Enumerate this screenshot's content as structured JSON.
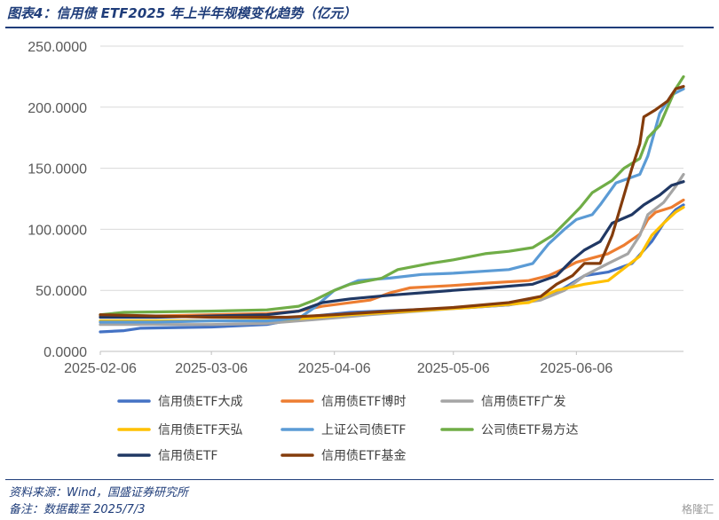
{
  "header": {
    "title": "图表4：信用债 ETF2025 年上半年规模变化趋势（亿元）"
  },
  "footer": {
    "source": "资料来源：Wind，国盛证券研究所",
    "note": "备注：数据截至 2025/7/3",
    "watermark": "格隆汇"
  },
  "chart_data": {
    "type": "line",
    "title": "信用债 ETF2025 年上半年规模变化趋势（亿元）",
    "xlabel": "",
    "ylabel": "",
    "ylim": [
      0,
      250
    ],
    "xlim": [
      "2025-02-06",
      "2025-07-03"
    ],
    "y_ticks": [
      "0.0000",
      "50.0000",
      "100.0000",
      "150.0000",
      "200.0000",
      "250.0000"
    ],
    "x_ticks": [
      "2025-02-06",
      "2025-03-06",
      "2025-04-06",
      "2025-05-06",
      "2025-06-06"
    ],
    "grid": true,
    "legend_position": "bottom",
    "series": [
      {
        "name": "信用债ETF大成",
        "color": "#4472c4",
        "points": [
          [
            "2025-02-06",
            16
          ],
          [
            "2025-02-12",
            17
          ],
          [
            "2025-02-16",
            19
          ],
          [
            "2025-03-06",
            20
          ],
          [
            "2025-03-20",
            22
          ],
          [
            "2025-03-25",
            25
          ],
          [
            "2025-04-01",
            29
          ],
          [
            "2025-04-10",
            32
          ],
          [
            "2025-04-25",
            34
          ],
          [
            "2025-05-10",
            36
          ],
          [
            "2025-05-20",
            38
          ],
          [
            "2025-05-30",
            45
          ],
          [
            "2025-06-03",
            52
          ],
          [
            "2025-06-08",
            62
          ],
          [
            "2025-06-14",
            65
          ],
          [
            "2025-06-20",
            72
          ],
          [
            "2025-06-25",
            90
          ],
          [
            "2025-06-28",
            105
          ],
          [
            "2025-07-01",
            116
          ],
          [
            "2025-07-03",
            120
          ]
        ]
      },
      {
        "name": "信用债ETF博时",
        "color": "#ed7d31",
        "points": [
          [
            "2025-02-06",
            29
          ],
          [
            "2025-02-20",
            29
          ],
          [
            "2025-03-06",
            30
          ],
          [
            "2025-03-20",
            31
          ],
          [
            "2025-03-28",
            33
          ],
          [
            "2025-04-03",
            37
          ],
          [
            "2025-04-15",
            42
          ],
          [
            "2025-04-20",
            48
          ],
          [
            "2025-04-25",
            52
          ],
          [
            "2025-05-06",
            54
          ],
          [
            "2025-05-15",
            56
          ],
          [
            "2025-05-25",
            58
          ],
          [
            "2025-05-30",
            62
          ],
          [
            "2025-06-03",
            68
          ],
          [
            "2025-06-06",
            73
          ],
          [
            "2025-06-14",
            80
          ],
          [
            "2025-06-18",
            87
          ],
          [
            "2025-06-22",
            96
          ],
          [
            "2025-06-24",
            108
          ],
          [
            "2025-06-26",
            114
          ],
          [
            "2025-06-30",
            118
          ],
          [
            "2025-07-03",
            124
          ]
        ]
      },
      {
        "name": "信用债ETF广发",
        "color": "#a5a5a5",
        "points": [
          [
            "2025-02-06",
            22
          ],
          [
            "2025-02-20",
            22
          ],
          [
            "2025-03-06",
            22
          ],
          [
            "2025-03-20",
            23
          ],
          [
            "2025-04-01",
            26
          ],
          [
            "2025-04-15",
            30
          ],
          [
            "2025-05-06",
            35
          ],
          [
            "2025-05-20",
            38
          ],
          [
            "2025-05-28",
            42
          ],
          [
            "2025-06-03",
            50
          ],
          [
            "2025-06-08",
            62
          ],
          [
            "2025-06-14",
            72
          ],
          [
            "2025-06-19",
            80
          ],
          [
            "2025-06-22",
            95
          ],
          [
            "2025-06-24",
            112
          ],
          [
            "2025-06-28",
            122
          ],
          [
            "2025-07-01",
            135
          ],
          [
            "2025-07-03",
            145
          ]
        ]
      },
      {
        "name": "信用债ETF天弘",
        "color": "#ffc000",
        "points": [
          [
            "2025-02-06",
            25
          ],
          [
            "2025-02-20",
            25
          ],
          [
            "2025-03-06",
            25
          ],
          [
            "2025-03-25",
            26
          ],
          [
            "2025-04-10",
            30
          ],
          [
            "2025-04-25",
            33
          ],
          [
            "2025-05-10",
            36
          ],
          [
            "2025-05-25",
            40
          ],
          [
            "2025-06-01",
            50
          ],
          [
            "2025-06-08",
            55
          ],
          [
            "2025-06-14",
            58
          ],
          [
            "2025-06-18",
            68
          ],
          [
            "2025-06-22",
            78
          ],
          [
            "2025-06-25",
            95
          ],
          [
            "2025-06-28",
            105
          ],
          [
            "2025-07-01",
            114
          ],
          [
            "2025-07-03",
            118
          ]
        ]
      },
      {
        "name": "上证公司债ETF",
        "color": "#5b9bd5",
        "points": [
          [
            "2025-02-06",
            24
          ],
          [
            "2025-02-20",
            24
          ],
          [
            "2025-03-06",
            25
          ],
          [
            "2025-03-20",
            25
          ],
          [
            "2025-03-28",
            27
          ],
          [
            "2025-04-01",
            36
          ],
          [
            "2025-04-06",
            50
          ],
          [
            "2025-04-12",
            58
          ],
          [
            "2025-04-20",
            60
          ],
          [
            "2025-04-28",
            63
          ],
          [
            "2025-05-06",
            64
          ],
          [
            "2025-05-20",
            67
          ],
          [
            "2025-05-26",
            72
          ],
          [
            "2025-05-30",
            88
          ],
          [
            "2025-06-03",
            100
          ],
          [
            "2025-06-06",
            108
          ],
          [
            "2025-06-10",
            112
          ],
          [
            "2025-06-12",
            120
          ],
          [
            "2025-06-16",
            138
          ],
          [
            "2025-06-22",
            145
          ],
          [
            "2025-06-24",
            160
          ],
          [
            "2025-06-27",
            195
          ],
          [
            "2025-06-30",
            210
          ],
          [
            "2025-07-03",
            215
          ]
        ]
      },
      {
        "name": "公司债ETF易方达",
        "color": "#70ad47",
        "points": [
          [
            "2025-02-06",
            30
          ],
          [
            "2025-02-12",
            32
          ],
          [
            "2025-03-06",
            33
          ],
          [
            "2025-03-20",
            34
          ],
          [
            "2025-03-28",
            37
          ],
          [
            "2025-04-01",
            42
          ],
          [
            "2025-04-06",
            50
          ],
          [
            "2025-04-10",
            55
          ],
          [
            "2025-04-18",
            60
          ],
          [
            "2025-04-22",
            67
          ],
          [
            "2025-04-30",
            72
          ],
          [
            "2025-05-06",
            75
          ],
          [
            "2025-05-14",
            80
          ],
          [
            "2025-05-20",
            82
          ],
          [
            "2025-05-26",
            85
          ],
          [
            "2025-05-31",
            95
          ],
          [
            "2025-06-04",
            108
          ],
          [
            "2025-06-07",
            118
          ],
          [
            "2025-06-10",
            130
          ],
          [
            "2025-06-15",
            140
          ],
          [
            "2025-06-18",
            150
          ],
          [
            "2025-06-22",
            158
          ],
          [
            "2025-06-24",
            175
          ],
          [
            "2025-06-27",
            185
          ],
          [
            "2025-06-29",
            200
          ],
          [
            "2025-07-01",
            215
          ],
          [
            "2025-07-03",
            225
          ]
        ]
      },
      {
        "name": "信用债ETF",
        "color": "#203864",
        "points": [
          [
            "2025-02-06",
            28
          ],
          [
            "2025-02-20",
            28
          ],
          [
            "2025-03-06",
            29
          ],
          [
            "2025-03-20",
            30
          ],
          [
            "2025-03-28",
            33
          ],
          [
            "2025-04-03",
            40
          ],
          [
            "2025-04-10",
            43
          ],
          [
            "2025-04-20",
            46
          ],
          [
            "2025-05-06",
            50
          ],
          [
            "2025-05-15",
            52
          ],
          [
            "2025-05-26",
            55
          ],
          [
            "2025-06-01",
            62
          ],
          [
            "2025-06-05",
            75
          ],
          [
            "2025-06-08",
            83
          ],
          [
            "2025-06-12",
            90
          ],
          [
            "2025-06-15",
            105
          ],
          [
            "2025-06-20",
            112
          ],
          [
            "2025-06-23",
            120
          ],
          [
            "2025-06-27",
            128
          ],
          [
            "2025-06-30",
            136
          ],
          [
            "2025-07-03",
            139
          ]
        ]
      },
      {
        "name": "信用债ETF基金",
        "color": "#843c0c",
        "points": [
          [
            "2025-02-06",
            30
          ],
          [
            "2025-02-20",
            29
          ],
          [
            "2025-03-06",
            28
          ],
          [
            "2025-03-25",
            28
          ],
          [
            "2025-04-06",
            30
          ],
          [
            "2025-04-20",
            33
          ],
          [
            "2025-05-06",
            36
          ],
          [
            "2025-05-20",
            40
          ],
          [
            "2025-05-28",
            45
          ],
          [
            "2025-06-01",
            55
          ],
          [
            "2025-06-05",
            62
          ],
          [
            "2025-06-08",
            72
          ],
          [
            "2025-06-12",
            72
          ],
          [
            "2025-06-15",
            95
          ],
          [
            "2025-06-18",
            128
          ],
          [
            "2025-06-20",
            150
          ],
          [
            "2025-06-22",
            170
          ],
          [
            "2025-06-23",
            192
          ],
          [
            "2025-06-26",
            198
          ],
          [
            "2025-06-29",
            205
          ],
          [
            "2025-07-01",
            215
          ],
          [
            "2025-07-03",
            217
          ]
        ]
      }
    ]
  }
}
